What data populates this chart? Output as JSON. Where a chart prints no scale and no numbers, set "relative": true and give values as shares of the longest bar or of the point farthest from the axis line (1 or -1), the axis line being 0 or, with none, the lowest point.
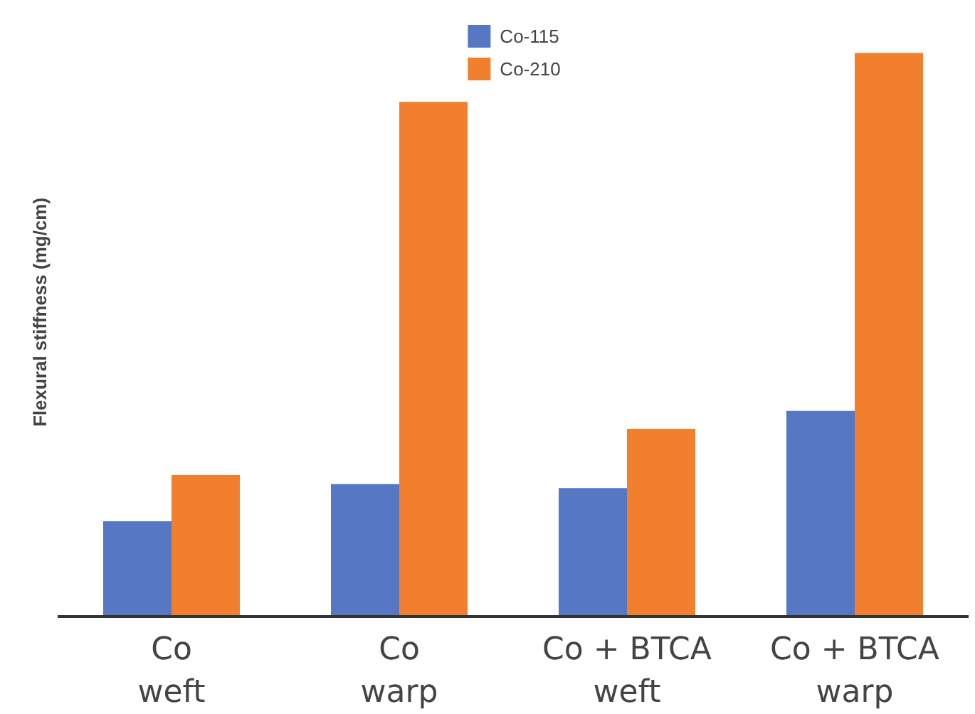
{
  "chart_data": {
    "type": "bar",
    "ylabel": "Flexural stiffness (mg/cm)",
    "categories": [
      "Co\nweft",
      "Co\nwarp",
      "Co + BTCA\nweft",
      "Co + BTCA\nwarp"
    ],
    "relative": true,
    "legend": "top",
    "series": [
      {
        "name": "Co-115",
        "color": "#5577c4",
        "values": [
          0.169,
          0.235,
          0.228,
          0.365
        ]
      },
      {
        "name": "Co-210",
        "color": "#f27f2e",
        "values": [
          0.251,
          0.913,
          0.333,
          1.0
        ]
      }
    ]
  }
}
